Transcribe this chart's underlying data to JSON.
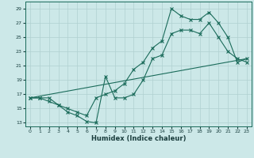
{
  "xlabel": "Humidex (Indice chaleur)",
  "bg_color": "#cce8e8",
  "grid_color": "#b0d0d0",
  "line_color": "#1a6b5a",
  "xlim": [
    -0.5,
    23.5
  ],
  "ylim": [
    12.5,
    30
  ],
  "xticks": [
    0,
    1,
    2,
    3,
    4,
    5,
    6,
    7,
    8,
    9,
    10,
    11,
    12,
    13,
    14,
    15,
    16,
    17,
    18,
    19,
    20,
    21,
    22,
    23
  ],
  "yticks": [
    13,
    15,
    17,
    19,
    21,
    23,
    25,
    27,
    29
  ],
  "line1_x": [
    0,
    1,
    2,
    3,
    4,
    5,
    6,
    7,
    8,
    9,
    10,
    11,
    12,
    13,
    14,
    15,
    16,
    17,
    18,
    19,
    20,
    21,
    22,
    23
  ],
  "line1_y": [
    16.5,
    16.5,
    16.0,
    15.5,
    14.5,
    14.0,
    13.2,
    13.0,
    19.5,
    16.5,
    16.5,
    17.0,
    19.0,
    22.0,
    22.5,
    25.5,
    26.0,
    26.0,
    25.5,
    27.0,
    25.0,
    23.0,
    22.0,
    21.5
  ],
  "line2_x": [
    0,
    1,
    2,
    3,
    4,
    5,
    6,
    7,
    8,
    9,
    10,
    11,
    12,
    13,
    14,
    15,
    16,
    17,
    18,
    19,
    20,
    21,
    22,
    23
  ],
  "line2_y": [
    16.5,
    16.5,
    16.5,
    15.5,
    15.0,
    14.5,
    14.0,
    16.5,
    17.0,
    17.5,
    18.5,
    20.5,
    21.5,
    23.5,
    24.5,
    29.0,
    28.0,
    27.5,
    27.5,
    28.5,
    27.0,
    25.0,
    21.5,
    22.0
  ],
  "line3_x": [
    0,
    23
  ],
  "line3_y": [
    16.5,
    22.0
  ]
}
